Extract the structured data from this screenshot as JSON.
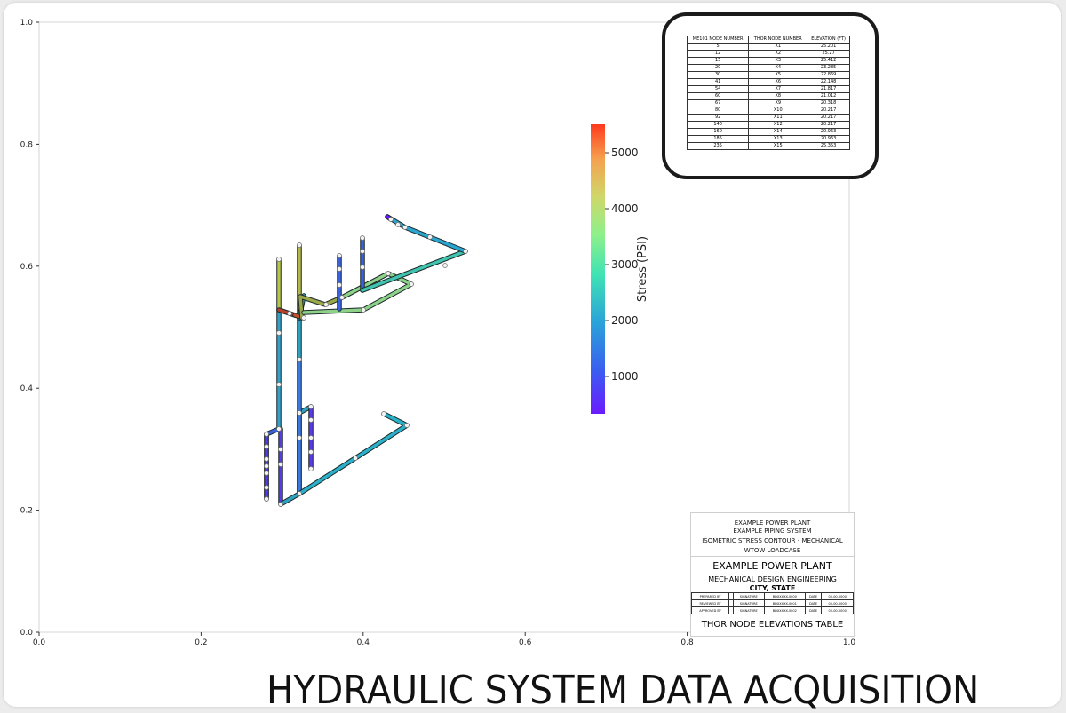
{
  "plot": {
    "xlim": [
      0.0,
      1.0
    ],
    "ylim": [
      0.0,
      1.0
    ],
    "x_ticks": [
      "0.0",
      "0.2",
      "0.4",
      "0.6",
      "0.8",
      "1.0"
    ],
    "y_ticks": [
      "0.0",
      "0.2",
      "0.4",
      "0.6",
      "0.8",
      "1.0"
    ],
    "grid": false
  },
  "colorbar": {
    "label": "Stress (PSI)",
    "ticks": [
      "1000",
      "2000",
      "3000",
      "4000",
      "5000"
    ],
    "colormap": [
      "#6a1bff",
      "#3a5ef0",
      "#2aa5d8",
      "#3fe3b4",
      "#8ef08a",
      "#cfd76a",
      "#f5a14e",
      "#ff3a1e"
    ]
  },
  "node_table": {
    "headers": [
      "ME101 NODE NUMBER",
      "THOR NODE NUMBER",
      "ELEVATION (FT)"
    ],
    "rows": [
      [
        "5",
        "X1",
        "25.201"
      ],
      [
        "12",
        "X2",
        "25.27"
      ],
      [
        "15",
        "X3",
        "25.412"
      ],
      [
        "20",
        "X4",
        "23.285"
      ],
      [
        "30",
        "X5",
        "22.869"
      ],
      [
        "41",
        "X6",
        "22.148"
      ],
      [
        "54",
        "X7",
        "21.817"
      ],
      [
        "60",
        "X8",
        "21.012"
      ],
      [
        "67",
        "X9",
        "20.318"
      ],
      [
        "80",
        "X10",
        "20.217"
      ],
      [
        "92",
        "X11",
        "20.217"
      ],
      [
        "140",
        "X12",
        "20.217"
      ],
      [
        "160",
        "X14",
        "20.963"
      ],
      [
        "185",
        "X13",
        "20.963"
      ],
      [
        "235",
        "X15",
        "25.353"
      ]
    ]
  },
  "title_block": {
    "plant_line1": "EXAMPLE POWER PLANT",
    "system_line": "EXAMPLE PIPING SYSTEM",
    "drawing_line": "ISOMETRIC STRESS CONTOUR - MECHANICAL",
    "loadcase_line": "WTOW LOADCASE",
    "company": "EXAMPLE POWER PLANT",
    "department": "MECHANICAL DESIGN ENGINEERING",
    "city": "CITY, STATE",
    "signatures": [
      [
        "PREPARED BY",
        "",
        "SIGNATURE",
        "BDXXXXX-0000",
        "DATE",
        "00-00-0000"
      ],
      [
        "REVIEWED BY",
        "",
        "SIGNATURE",
        "BDXXXXX-0001",
        "DATE",
        "00-00-0000"
      ],
      [
        "APPROVED BY",
        "",
        "SIGNATURE",
        "BDXXXXX-0002",
        "DATE",
        "00-00-0000"
      ]
    ],
    "caption": "THOR NODE ELEVATIONS TABLE"
  },
  "banner": "HYDRAULIC SYSTEM DATA ACQUISITION"
}
